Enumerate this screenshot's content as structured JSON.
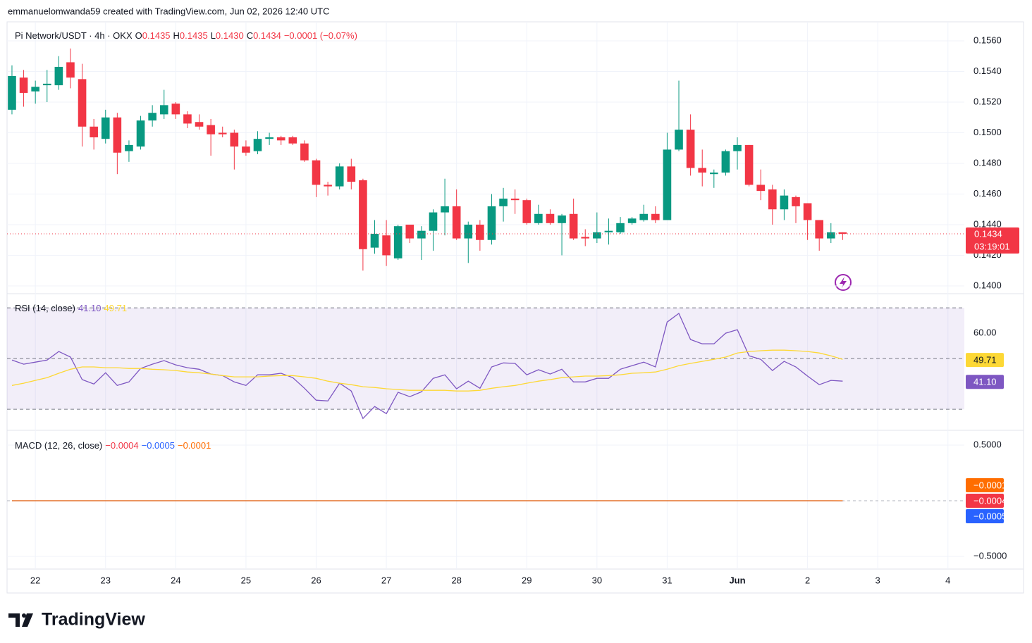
{
  "header": "emmanuelomwanda59 created with TradingView.com, Jun 02, 2026 12:40 UTC",
  "footer_logo": "TradingView",
  "chart_data": [
    {
      "type": "candlestick",
      "title": "Pi Network/USDT · 4h · OKX",
      "legend": [
        {
          "label": "O",
          "value": "0.1435"
        },
        {
          "label": "H",
          "value": "0.1435"
        },
        {
          "label": "L",
          "value": "0.1430"
        },
        {
          "label": "C",
          "value": "0.1434"
        }
      ],
      "change": "−0.0001 (−0.07%)",
      "last_price_label": "0.1434",
      "countdown": "03:19:01",
      "up_color": "#089981",
      "down_color": "#f23645",
      "grid": true,
      "x": [
        0,
        1,
        2,
        3,
        4,
        5,
        6,
        7,
        8,
        9,
        10,
        11,
        12,
        13,
        14,
        15,
        16,
        17,
        18,
        19,
        20,
        21,
        22,
        23,
        24,
        25,
        26,
        27,
        28,
        29,
        30,
        31,
        32,
        33,
        34,
        35,
        36,
        37,
        38,
        39,
        40,
        41,
        42,
        43,
        44,
        45,
        46,
        47,
        48,
        49,
        50,
        51,
        52,
        53,
        54,
        55,
        56,
        57,
        58,
        59,
        60,
        61,
        62,
        63,
        64,
        65,
        66,
        67,
        68,
        69,
        70,
        71
      ],
      "open": [
        0.1515,
        0.1536,
        0.1527,
        0.1531,
        0.1531,
        0.1546,
        0.1535,
        0.1504,
        0.1496,
        0.151,
        0.1488,
        0.1491,
        0.1508,
        0.1512,
        0.1519,
        0.1512,
        0.1507,
        0.1505,
        0.15,
        0.15,
        0.1491,
        0.1488,
        0.1496,
        0.1497,
        0.1497,
        0.1493,
        0.1482,
        0.1466,
        0.1465,
        0.1478,
        0.1469,
        0.1425,
        0.1433,
        0.1418,
        0.144,
        0.1431,
        0.1436,
        0.1448,
        0.1452,
        0.1431,
        0.144,
        0.143,
        0.1452,
        0.1457,
        0.1456,
        0.1441,
        0.1447,
        0.1441,
        0.1447,
        0.1432,
        0.1431,
        0.1435,
        0.1435,
        0.1441,
        0.1443,
        0.1447,
        0.1443,
        0.1489,
        0.1502,
        0.1477,
        0.1473,
        0.1474,
        0.1488,
        0.1492,
        0.1466,
        0.1463,
        0.145,
        0.1458,
        0.1454,
        0.1443,
        0.1431,
        0.1435
      ],
      "high": [
        0.1544,
        0.1541,
        0.1534,
        0.1541,
        0.155,
        0.1555,
        0.1545,
        0.1509,
        0.1515,
        0.1513,
        0.1495,
        0.1511,
        0.1518,
        0.1528,
        0.152,
        0.1514,
        0.1512,
        0.1509,
        0.1504,
        0.1502,
        0.1495,
        0.1501,
        0.15,
        0.1498,
        0.1498,
        0.1495,
        0.1483,
        0.1468,
        0.148,
        0.1483,
        0.147,
        0.1443,
        0.1443,
        0.144,
        0.144,
        0.1439,
        0.145,
        0.147,
        0.1463,
        0.1442,
        0.1443,
        0.146,
        0.1464,
        0.1463,
        0.1457,
        0.1453,
        0.145,
        0.1447,
        0.1457,
        0.1437,
        0.1448,
        0.1444,
        0.1445,
        0.1445,
        0.1453,
        0.1452,
        0.15,
        0.1534,
        0.1512,
        0.1489,
        0.1476,
        0.1489,
        0.1497,
        0.1492,
        0.1476,
        0.1466,
        0.1463,
        0.1459,
        0.1454,
        0.1443,
        0.1441,
        0.1435
      ],
      "low": [
        0.1512,
        0.1517,
        0.1519,
        0.152,
        0.1528,
        0.1529,
        0.1491,
        0.1489,
        0.1493,
        0.1473,
        0.1481,
        0.1489,
        0.1504,
        0.1509,
        0.1509,
        0.1503,
        0.1502,
        0.1485,
        0.1497,
        0.1476,
        0.1485,
        0.1486,
        0.1492,
        0.1492,
        0.1492,
        0.1481,
        0.1458,
        0.1459,
        0.1463,
        0.1463,
        0.141,
        0.1421,
        0.1413,
        0.1417,
        0.1428,
        0.1417,
        0.1423,
        0.1433,
        0.143,
        0.1415,
        0.1423,
        0.1427,
        0.1442,
        0.1447,
        0.144,
        0.144,
        0.144,
        0.142,
        0.143,
        0.1426,
        0.1428,
        0.1427,
        0.1434,
        0.144,
        0.1442,
        0.1441,
        0.1443,
        0.1488,
        0.1472,
        0.1465,
        0.1464,
        0.1472,
        0.1476,
        0.1465,
        0.1456,
        0.144,
        0.1443,
        0.1441,
        0.143,
        0.1423,
        0.1428,
        0.143
      ],
      "close": [
        0.1537,
        0.1526,
        0.153,
        0.1532,
        0.1543,
        0.1536,
        0.1504,
        0.1497,
        0.151,
        0.1487,
        0.1492,
        0.1508,
        0.1513,
        0.1518,
        0.1512,
        0.1506,
        0.1504,
        0.1499,
        0.1499,
        0.1491,
        0.1487,
        0.1496,
        0.1497,
        0.1495,
        0.1493,
        0.1482,
        0.1466,
        0.1465,
        0.1478,
        0.1468,
        0.1424,
        0.1434,
        0.142,
        0.1439,
        0.1431,
        0.1436,
        0.1448,
        0.1452,
        0.1431,
        0.144,
        0.143,
        0.1452,
        0.1457,
        0.1456,
        0.1441,
        0.1447,
        0.1441,
        0.1446,
        0.1431,
        0.1431,
        0.1435,
        0.1436,
        0.1441,
        0.1444,
        0.1447,
        0.1443,
        0.1489,
        0.1502,
        0.1477,
        0.1474,
        0.1474,
        0.1488,
        0.1492,
        0.1466,
        0.1462,
        0.145,
        0.1459,
        0.1452,
        0.1443,
        0.1431,
        0.1435,
        0.1434
      ],
      "xlim": [
        -0.42,
        81.4
      ],
      "xticks": [
        {
          "value": 2,
          "label": "22"
        },
        {
          "value": 8,
          "label": "23"
        },
        {
          "value": 14,
          "label": "24"
        },
        {
          "value": 20,
          "label": "25"
        },
        {
          "value": 26,
          "label": "26"
        },
        {
          "value": 32,
          "label": "27"
        },
        {
          "value": 38,
          "label": "28"
        },
        {
          "value": 44,
          "label": "29"
        },
        {
          "value": 50,
          "label": "30"
        },
        {
          "value": 56,
          "label": "31"
        },
        {
          "value": 62,
          "label": "Jun"
        },
        {
          "value": 68,
          "label": "2"
        },
        {
          "value": 74,
          "label": "3"
        },
        {
          "value": 80,
          "label": "4"
        }
      ],
      "ylim": [
        0.13954,
        0.15724
      ],
      "yticks": [
        {
          "value": 0.14,
          "label": "0.1400"
        },
        {
          "value": 0.142,
          "label": "0.1420"
        },
        {
          "value": 0.144,
          "label": "0.1440"
        },
        {
          "value": 0.146,
          "label": "0.1460"
        },
        {
          "value": 0.148,
          "label": "0.1480"
        },
        {
          "value": 0.15,
          "label": "0.1500"
        },
        {
          "value": 0.152,
          "label": "0.1520"
        },
        {
          "value": 0.154,
          "label": "0.1540"
        },
        {
          "value": 0.156,
          "label": "0.1560"
        }
      ]
    },
    {
      "type": "line",
      "title": "RSI (14, close)",
      "ylim": [
        22,
        75.3
      ],
      "yticks": [
        {
          "value": 60,
          "label": "60.00"
        }
      ],
      "levels": [
        30,
        50,
        70
      ],
      "band_color": "#7e57c2",
      "series": [
        {
          "color": "#7e57c2",
          "last_label": "41.10",
          "values": [
            49.4,
            47.8,
            48.6,
            49.4,
            52.8,
            50.6,
            41.7,
            40,
            44.4,
            39.4,
            40.8,
            46.1,
            47.8,
            49.2,
            47.5,
            46.4,
            45.8,
            43.9,
            43.3,
            40.8,
            39.4,
            43.6,
            43.6,
            44.2,
            42.5,
            38.3,
            33.6,
            33.3,
            40.3,
            37.2,
            26.4,
            31.1,
            28.3,
            36.7,
            35,
            36.9,
            42.2,
            43.6,
            38.1,
            41.1,
            38.3,
            46.7,
            48.3,
            48.1,
            43.6,
            45.6,
            43.9,
            45.8,
            40.8,
            40.8,
            42.2,
            42.2,
            45.8,
            47.2,
            48.6,
            46.7,
            64.4,
            67.8,
            57.5,
            55.8,
            55.8,
            60,
            61.4,
            51.1,
            49.7,
            45.3,
            48.9,
            46.7,
            43.1,
            39.7,
            41.4,
            41.1
          ]
        },
        {
          "color": "#fdd835",
          "last_label": "49.71",
          "values": [
            39.4,
            40.3,
            41.4,
            42.5,
            44.2,
            45.8,
            46.7,
            46.7,
            46.4,
            46.4,
            46.1,
            46.1,
            45.8,
            45.6,
            45.3,
            44.7,
            44.4,
            43.9,
            43.3,
            42.8,
            42.8,
            42.8,
            43.1,
            43.3,
            43.3,
            42.8,
            42.2,
            41.1,
            40.3,
            39.7,
            38.9,
            38.6,
            38.1,
            37.8,
            37.5,
            37.5,
            37.5,
            37.5,
            37.2,
            37.2,
            37.5,
            38.3,
            38.9,
            39.4,
            40.3,
            41.1,
            41.7,
            42.5,
            42.8,
            43.1,
            43.1,
            43.3,
            43.6,
            44.2,
            44.4,
            44.7,
            45.8,
            47.2,
            48.1,
            48.9,
            49.7,
            50.6,
            52.2,
            52.8,
            53.1,
            53.3,
            53.3,
            53.1,
            52.8,
            52.2,
            51.1,
            49.71
          ]
        }
      ]
    },
    {
      "type": "macd",
      "title": "MACD (12, 26, close)",
      "ylim": [
        -0.614,
        0.627
      ],
      "yticks": [
        {
          "value": 0.5,
          "label": "0.5000"
        },
        {
          "value": -0.5,
          "label": "−0.5000"
        }
      ],
      "series": [
        {
          "kind": "histogram",
          "color": "#f23645",
          "last_label": "−0.0004",
          "values": [
            0,
            0,
            0,
            0,
            0,
            0,
            0,
            0,
            0,
            0,
            0,
            0,
            0,
            0,
            0,
            0,
            0,
            0,
            0,
            0,
            0,
            0,
            0,
            0,
            0,
            0,
            0,
            0,
            0,
            0,
            0,
            0,
            0,
            0,
            0,
            0,
            0,
            0,
            0,
            0,
            0,
            0,
            0,
            0,
            0,
            0,
            0,
            0,
            0,
            0,
            0,
            0,
            0,
            0,
            0,
            0,
            0,
            0,
            0,
            0,
            0,
            0,
            0,
            0,
            0,
            0,
            0,
            0,
            0,
            0,
            0,
            -0.0004
          ]
        },
        {
          "kind": "line",
          "color": "#2962ff",
          "last_label": "−0.0005",
          "values": [
            0,
            0,
            0,
            0,
            0,
            0,
            0,
            0,
            0,
            0,
            0,
            0,
            0,
            0,
            0,
            0,
            0,
            0,
            0,
            0,
            0,
            0,
            0,
            0,
            0,
            0,
            0,
            0,
            0,
            0,
            0,
            0,
            0,
            0,
            0,
            0,
            0,
            0,
            0,
            0,
            0,
            0,
            0,
            0,
            0,
            0,
            0,
            0,
            0,
            0,
            0,
            0,
            0,
            0,
            0,
            0,
            0,
            0,
            0,
            0,
            0,
            0,
            0,
            0,
            0,
            0,
            0,
            0,
            0,
            0,
            0,
            -0.0005
          ]
        },
        {
          "kind": "line",
          "color": "#ff6d00",
          "last_label": "−0.0001",
          "values": [
            0,
            0,
            0,
            0,
            0,
            0,
            0,
            0,
            0,
            0,
            0,
            0,
            0,
            0,
            0,
            0,
            0,
            0,
            0,
            0,
            0,
            0,
            0,
            0,
            0,
            0,
            0,
            0,
            0,
            0,
            0,
            0,
            0,
            0,
            0,
            0,
            0,
            0,
            0,
            0,
            0,
            0,
            0,
            0,
            0,
            0,
            0,
            0,
            0,
            0,
            0,
            0,
            0,
            0,
            0,
            0,
            0,
            0,
            0,
            0,
            0,
            0,
            0,
            0,
            0,
            0,
            0,
            0,
            0,
            0,
            0,
            -0.0001
          ]
        }
      ]
    }
  ]
}
